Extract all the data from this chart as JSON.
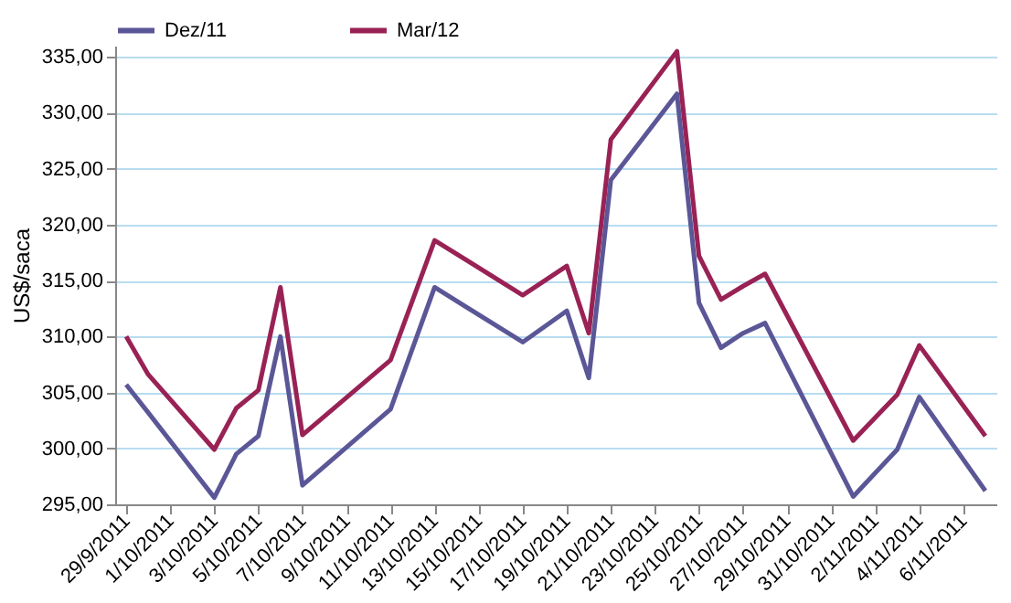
{
  "chart_data": {
    "type": "line",
    "ylabel": "US$/saca",
    "x": [
      "2011-09-29",
      "2011-09-30",
      "2011-10-03",
      "2011-10-04",
      "2011-10-05",
      "2011-10-06",
      "2011-10-07",
      "2011-10-11",
      "2011-10-13",
      "2011-10-17",
      "2011-10-19",
      "2011-10-20",
      "2011-10-21",
      "2011-10-24",
      "2011-10-25",
      "2011-10-26",
      "2011-10-27",
      "2011-10-28",
      "2011-11-01",
      "2011-11-03",
      "2011-11-04",
      "2011-11-07"
    ],
    "series": [
      {
        "name": "Dez/11",
        "color": "#5b5797",
        "values": [
          305.7,
          303.2,
          295.6,
          299.5,
          301.1,
          310.0,
          296.7,
          303.5,
          314.4,
          309.5,
          312.3,
          306.3,
          324.0,
          331.7,
          313.0,
          309.0,
          310.3,
          311.2,
          295.7,
          299.9,
          304.6,
          296.2
        ]
      },
      {
        "name": "Mar/12",
        "color": "#992255",
        "values": [
          310.0,
          306.6,
          299.9,
          303.6,
          305.2,
          314.4,
          301.2,
          307.9,
          318.6,
          313.7,
          316.3,
          310.3,
          327.6,
          335.5,
          317.2,
          313.3,
          314.5,
          315.6,
          300.7,
          304.8,
          309.2,
          301.1
        ]
      }
    ],
    "xlim": [
      "2011-09-28T12:00",
      "2011-11-07T12:00"
    ],
    "xticks": [
      {
        "value": "2011-09-29",
        "label": "29/9/2011"
      },
      {
        "value": "2011-10-01",
        "label": "1/10/2011"
      },
      {
        "value": "2011-10-03",
        "label": "3/10/2011"
      },
      {
        "value": "2011-10-05",
        "label": "5/10/2011"
      },
      {
        "value": "2011-10-07",
        "label": "7/10/2011"
      },
      {
        "value": "2011-10-09",
        "label": "9/10/2011"
      },
      {
        "value": "2011-10-11",
        "label": "11/10/2011"
      },
      {
        "value": "2011-10-13",
        "label": "13/10/2011"
      },
      {
        "value": "2011-10-15",
        "label": "15/10/2011"
      },
      {
        "value": "2011-10-17",
        "label": "17/10/2011"
      },
      {
        "value": "2011-10-19",
        "label": "19/10/2011"
      },
      {
        "value": "2011-10-21",
        "label": "21/10/2011"
      },
      {
        "value": "2011-10-23",
        "label": "23/10/2011"
      },
      {
        "value": "2011-10-25",
        "label": "25/10/2011"
      },
      {
        "value": "2011-10-27",
        "label": "27/10/2011"
      },
      {
        "value": "2011-10-29",
        "label": "29/10/2011"
      },
      {
        "value": "2011-10-31",
        "label": "31/10/2011"
      },
      {
        "value": "2011-11-02",
        "label": "2/11/2011"
      },
      {
        "value": "2011-11-04",
        "label": "4/11/2011"
      },
      {
        "value": "2011-11-06",
        "label": "6/11/2011"
      }
    ],
    "ylim": [
      295,
      336
    ],
    "yticks": [
      {
        "value": 295,
        "label": "295,00"
      },
      {
        "value": 300,
        "label": "300,00"
      },
      {
        "value": 305,
        "label": "305,00"
      },
      {
        "value": 310,
        "label": "310,00"
      },
      {
        "value": 315,
        "label": "315,00"
      },
      {
        "value": 320,
        "label": "320,00"
      },
      {
        "value": 325,
        "label": "325,00"
      },
      {
        "value": 330,
        "label": "330,00"
      },
      {
        "value": 335,
        "label": "335,00"
      }
    ],
    "grid": "y",
    "legend": "top",
    "marker": "none",
    "line_style": "solid"
  }
}
